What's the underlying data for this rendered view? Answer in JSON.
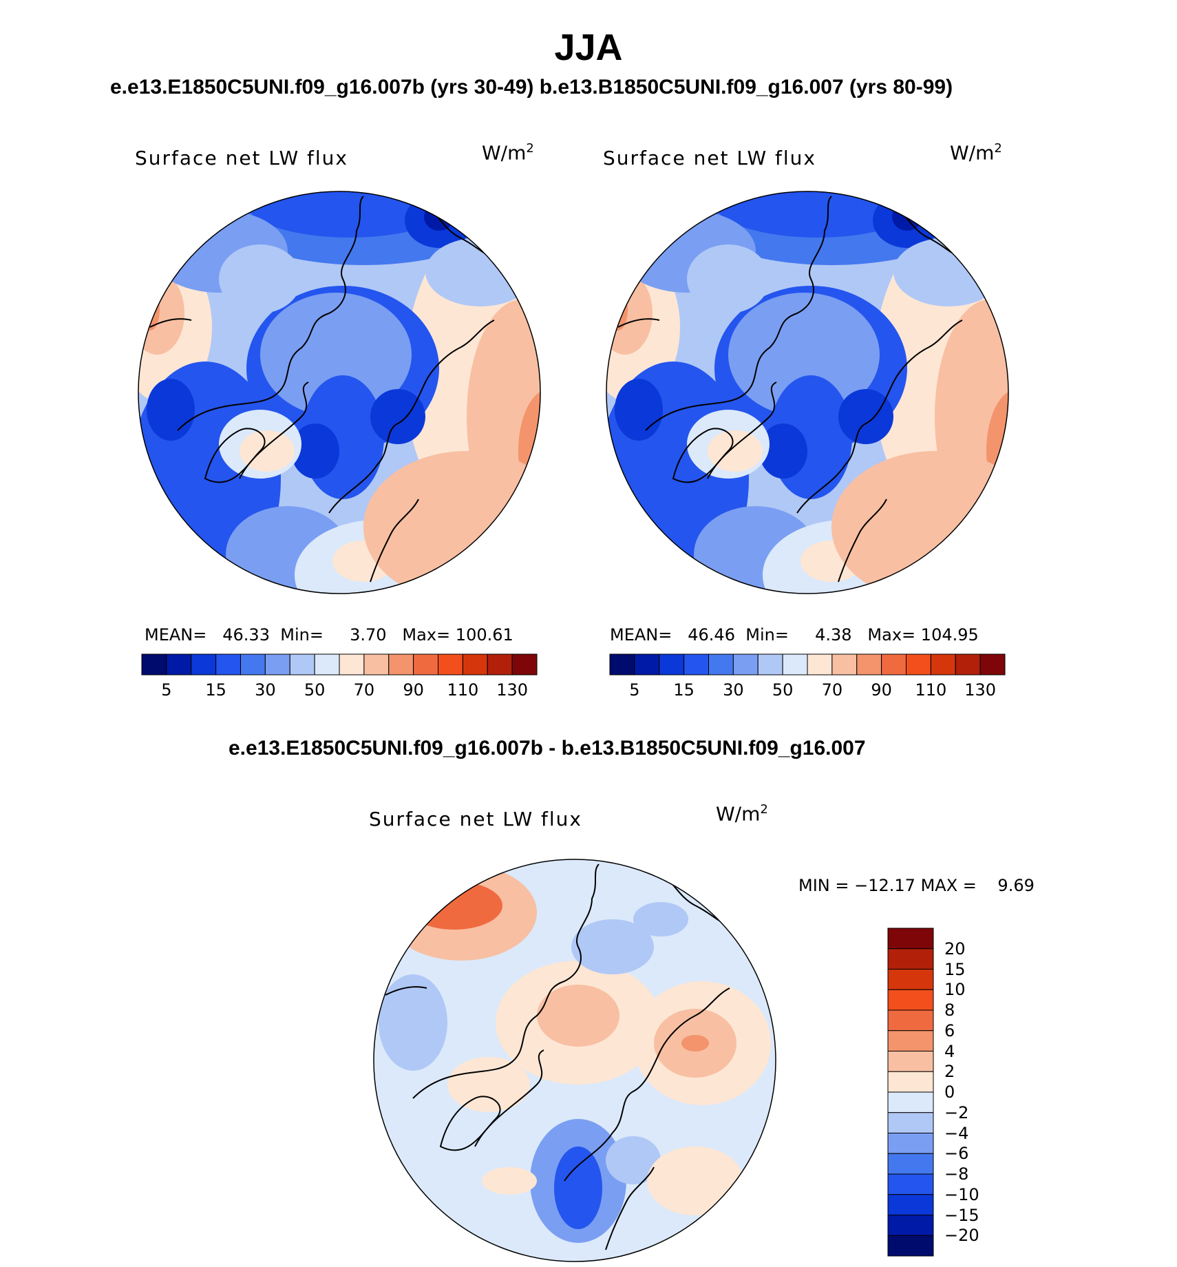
{
  "main_title": "JJA",
  "top_subtitle": "e.e13.E1850C5UNI.f09_g16.007b (yrs 30-49)  b.e13.B1850C5UNI.f09_g16.007 (yrs 80-99)",
  "bottom_subtitle": "e.e13.E1850C5UNI.f09_g16.007b - b.e13.B1850C5UNI.f09_g16.007",
  "colors": {
    "abs_scale": [
      "#000b6e",
      "#001aa8",
      "#0b38d8",
      "#2455ee",
      "#4478ee",
      "#7a9ef2",
      "#b0c8f6",
      "#dbe9fa",
      "#fde6d4",
      "#f8bfa2",
      "#f3946c",
      "#f06a40",
      "#f24f1d",
      "#d5360b",
      "#b2200a",
      "#7e0608"
    ],
    "diff_scale": [
      "#000b6e",
      "#001aa8",
      "#0b38d8",
      "#2455ee",
      "#4478ee",
      "#7a9ef2",
      "#b0c8f6",
      "#dbe9fa",
      "#fde6d4",
      "#f8bfa2",
      "#f3946c",
      "#f06a40",
      "#f24f1d",
      "#d5360b",
      "#b2200a",
      "#7e0608"
    ]
  },
  "chart_data": [
    {
      "type": "polar-contour-map",
      "title": "Surface net LW flux",
      "units": "W/m",
      "units_sup": "2",
      "stats": {
        "mean_label": "MEAN=",
        "mean": "46.33",
        "min_label": "Min=",
        "min": "3.70",
        "max_label": "Max=",
        "max": "100.61"
      },
      "colorbar_ticks": [
        "5",
        "15",
        "30",
        "50",
        "70",
        "90",
        "110",
        "130"
      ]
    },
    {
      "type": "polar-contour-map",
      "title": "Surface net LW flux",
      "units": "W/m",
      "units_sup": "2",
      "stats": {
        "mean_label": "MEAN=",
        "mean": "46.46",
        "min_label": "Min=",
        "min": "4.38",
        "max_label": "Max=",
        "max": "104.95"
      },
      "colorbar_ticks": [
        "5",
        "15",
        "30",
        "50",
        "70",
        "90",
        "110",
        "130"
      ]
    },
    {
      "type": "polar-contour-map-difference",
      "title": "Surface net LW flux",
      "units": "W/m",
      "units_sup": "2",
      "stats": {
        "min_label": "MIN =",
        "min": "−12.17",
        "max_label": "MAX =",
        "max": "9.69"
      },
      "colorbar_ticks": [
        "20",
        "15",
        "10",
        "8",
        "6",
        "4",
        "2",
        "0",
        "−2",
        "−4",
        "−6",
        "−8",
        "−10",
        "−15",
        "−20"
      ]
    }
  ]
}
